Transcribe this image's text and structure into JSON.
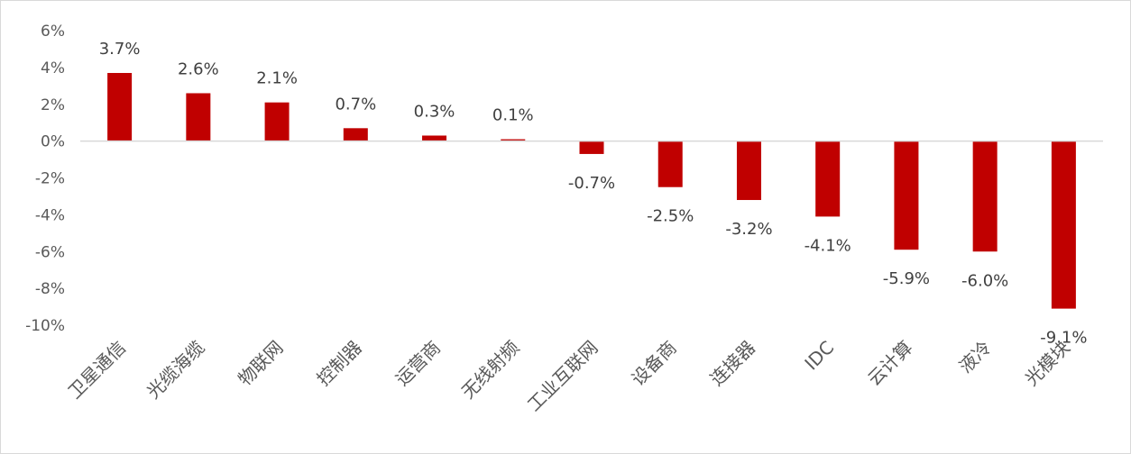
{
  "chart_data": {
    "type": "bar",
    "title": "",
    "xlabel": "",
    "ylabel": "",
    "categories": [
      "卫星通信",
      "光缆海缆",
      "物联网",
      "控制器",
      "运营商",
      "无线射频",
      "工业互联网",
      "设备商",
      "连接器",
      "IDC",
      "云计算",
      "液冷",
      "光模块"
    ],
    "values": [
      3.7,
      2.6,
      2.1,
      0.7,
      0.3,
      0.1,
      -0.7,
      -2.5,
      -3.2,
      -4.1,
      -5.9,
      -6.0,
      -9.1
    ],
    "data_labels": [
      "3.7%",
      "2.6%",
      "2.1%",
      "0.7%",
      "0.3%",
      "0.1%",
      "-0.7%",
      "-2.5%",
      "-3.2%",
      "-4.1%",
      "-5.9%",
      "-6.0%",
      "-9.1%"
    ],
    "ylim": [
      -10,
      6
    ],
    "yticks": [
      6,
      4,
      2,
      0,
      -2,
      -4,
      -6,
      -8,
      -10
    ],
    "ytick_labels": [
      "6%",
      "4%",
      "2%",
      "0%",
      "-2%",
      "-4%",
      "-6%",
      "-8%",
      "-10%"
    ],
    "grid": false,
    "legend": "none",
    "bar_color": "#c00000"
  }
}
